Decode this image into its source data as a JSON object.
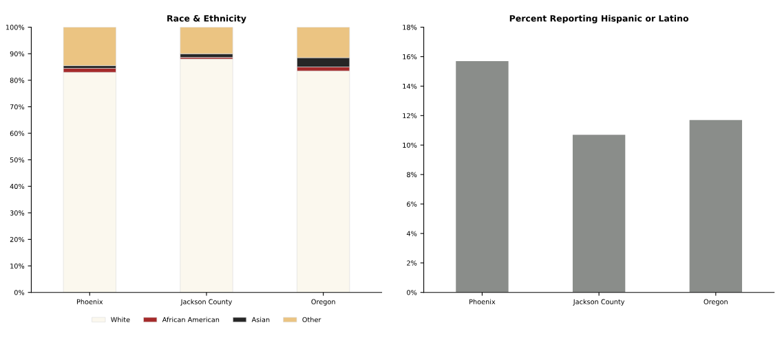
{
  "chart_data": [
    {
      "type": "bar",
      "title": "Race & Ethnicity",
      "categories": [
        "Phoenix",
        "Jackson County",
        "Oregon"
      ],
      "stacked": true,
      "ylim": [
        0,
        100
      ],
      "yticks": [
        {
          "value": 0,
          "label": "0%"
        },
        {
          "value": 10,
          "label": "10%"
        },
        {
          "value": 20,
          "label": "20%"
        },
        {
          "value": 30,
          "label": "30%"
        },
        {
          "value": 40,
          "label": "40%"
        },
        {
          "value": 50,
          "label": "50%"
        },
        {
          "value": 60,
          "label": "60%"
        },
        {
          "value": 70,
          "label": "70%"
        },
        {
          "value": 80,
          "label": "80%"
        },
        {
          "value": 90,
          "label": "90%"
        },
        {
          "value": 100,
          "label": "100%"
        }
      ],
      "grid": false,
      "legend": "bottom",
      "series": [
        {
          "name": "White",
          "color": "#fbf8ee",
          "values": [
            83,
            88,
            83.5
          ]
        },
        {
          "name": "African American",
          "color": "#a52a2a",
          "values": [
            1.5,
            0.6,
            1.5
          ]
        },
        {
          "name": "Asian",
          "color": "#262626",
          "values": [
            1,
            1.4,
            3.5
          ]
        },
        {
          "name": "Other",
          "color": "#ebc482",
          "values": [
            14.5,
            10,
            11.5
          ]
        }
      ]
    },
    {
      "type": "bar",
      "title": "Percent Reporting Hispanic or Latino",
      "categories": [
        "Phoenix",
        "Jackson County",
        "Oregon"
      ],
      "ylim": [
        0,
        18
      ],
      "yticks": [
        {
          "value": 0,
          "label": "0%"
        },
        {
          "value": 2,
          "label": "2%"
        },
        {
          "value": 4,
          "label": "4%"
        },
        {
          "value": 6,
          "label": "6%"
        },
        {
          "value": 8,
          "label": "8%"
        },
        {
          "value": 10,
          "label": "10%"
        },
        {
          "value": 12,
          "label": "12%"
        },
        {
          "value": 14,
          "label": "14%"
        },
        {
          "value": 16,
          "label": "16%"
        },
        {
          "value": 18,
          "label": "18%"
        }
      ],
      "grid": false,
      "legend": false,
      "series": [
        {
          "color": "#8a8d8a",
          "values": [
            15.7,
            10.7,
            11.7
          ]
        }
      ]
    }
  ]
}
